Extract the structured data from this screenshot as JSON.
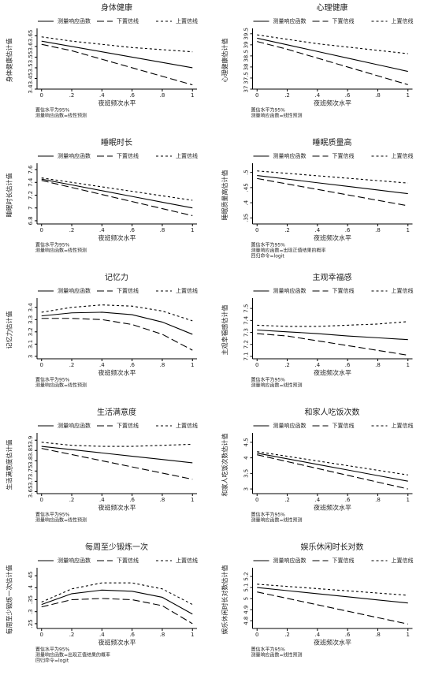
{
  "chart_data": [
    {
      "type": "line",
      "title": "身体健康",
      "y_label": "身体健康估计值",
      "x_label": "夜班频次水平",
      "notes": [
        "置信水平为95%",
        "测量响应函数=线性预测"
      ],
      "x": [
        0,
        0.2,
        0.4,
        0.6,
        0.8,
        1
      ],
      "xlim": [
        -0.03,
        1.03
      ],
      "xticks": [
        0,
        {
          "value": 0.2,
          "label": ".2"
        },
        {
          "value": 0.4,
          "label": ".4"
        },
        {
          "value": 0.6,
          "label": ".6"
        },
        {
          "value": 0.8,
          "label": ".8"
        },
        1
      ],
      "ylim": [
        3.4,
        3.67
      ],
      "yticks": [
        3.4,
        3.45,
        3.5,
        3.55,
        3.6,
        3.65
      ],
      "series": [
        {
          "name": "测量响应函数",
          "color": "#000000",
          "style": "solid",
          "values": [
            3.625,
            3.6,
            3.575,
            3.55,
            3.525,
            3.5
          ]
        },
        {
          "name": "下置信线",
          "color": "#000000",
          "style": "dashed",
          "values": [
            3.61,
            3.58,
            3.54,
            3.5,
            3.46,
            3.42
          ]
        },
        {
          "name": "上置信线",
          "color": "#000000",
          "style": "dotted",
          "values": [
            3.645,
            3.625,
            3.61,
            3.595,
            3.585,
            3.575
          ]
        }
      ]
    },
    {
      "type": "line",
      "title": "心理健康",
      "y_label": "心理健康估计值",
      "x_label": "夜班频次水平",
      "notes": [
        "置信水平为95%",
        "测量响应函数=线性预测"
      ],
      "x": [
        0,
        0.2,
        0.4,
        0.6,
        0.8,
        1
      ],
      "xlim": [
        -0.03,
        1.03
      ],
      "xticks": [
        0,
        {
          "value": 0.2,
          "label": ".2"
        },
        {
          "value": 0.4,
          "label": ".4"
        },
        {
          "value": 0.6,
          "label": ".6"
        },
        {
          "value": 0.8,
          "label": ".8"
        },
        1
      ],
      "ylim": [
        37,
        39.6
      ],
      "yticks": [
        37,
        37.5,
        38,
        38.5,
        39,
        39.5
      ],
      "series": [
        {
          "name": "测量响应函数",
          "color": "#000000",
          "style": "solid",
          "values": [
            39.3,
            39.0,
            38.7,
            38.4,
            38.1,
            37.8
          ]
        },
        {
          "name": "下置信线",
          "color": "#000000",
          "style": "dashed",
          "values": [
            39.15,
            38.8,
            38.4,
            38.0,
            37.6,
            37.2
          ]
        },
        {
          "name": "上置信线",
          "color": "#000000",
          "style": "dotted",
          "values": [
            39.45,
            39.25,
            39.05,
            38.9,
            38.75,
            38.6
          ]
        }
      ]
    },
    {
      "type": "line",
      "title": "睡眠时长",
      "y_label": "睡眠时长估计值",
      "x_label": "夜班频次水平",
      "notes": [
        "置信水平为95%",
        "测量响应函数=线性预测"
      ],
      "x": [
        0,
        0.2,
        0.4,
        0.6,
        0.8,
        1
      ],
      "xlim": [
        -0.03,
        1.03
      ],
      "xticks": [
        0,
        {
          "value": 0.2,
          "label": ".2"
        },
        {
          "value": 0.4,
          "label": ".4"
        },
        {
          "value": 0.6,
          "label": ".6"
        },
        {
          "value": 0.8,
          "label": ".8"
        },
        1
      ],
      "ylim": [
        6.75,
        7.65
      ],
      "yticks": [
        6.8,
        7,
        7.2,
        7.4,
        7.6
      ],
      "series": [
        {
          "name": "测量响应函数",
          "color": "#000000",
          "style": "solid",
          "values": [
            7.45,
            7.36,
            7.27,
            7.18,
            7.09,
            7.0
          ]
        },
        {
          "name": "下置信线",
          "color": "#000000",
          "style": "dashed",
          "values": [
            7.43,
            7.32,
            7.21,
            7.1,
            6.99,
            6.88
          ]
        },
        {
          "name": "上置信线",
          "color": "#000000",
          "style": "dotted",
          "values": [
            7.47,
            7.4,
            7.33,
            7.26,
            7.19,
            7.12
          ]
        }
      ]
    },
    {
      "type": "line",
      "title": "睡眠质量高",
      "y_label": "睡眠质量高估计值",
      "x_label": "夜班频次水平",
      "notes": [
        "置信水平为95%",
        "测量响应函数=出现正值结果的概率",
        "回归命令=logit"
      ],
      "x": [
        0,
        0.2,
        0.4,
        0.6,
        0.8,
        1
      ],
      "xlim": [
        -0.03,
        1.03
      ],
      "xticks": [
        0,
        {
          "value": 0.2,
          "label": ".2"
        },
        {
          "value": 0.4,
          "label": ".4"
        },
        {
          "value": 0.6,
          "label": ".6"
        },
        {
          "value": 0.8,
          "label": ".8"
        },
        1
      ],
      "ylim": [
        0.33,
        0.52
      ],
      "yticks": [
        {
          "value": 0.35,
          "label": ".35"
        },
        {
          "value": 0.4,
          "label": ".4"
        },
        {
          "value": 0.45,
          "label": ".45"
        },
        {
          "value": 0.5,
          "label": ".5"
        }
      ],
      "series": [
        {
          "name": "测量响应函数",
          "color": "#000000",
          "style": "solid",
          "values": [
            0.49,
            0.478,
            0.466,
            0.454,
            0.442,
            0.43
          ]
        },
        {
          "name": "下置信线",
          "color": "#000000",
          "style": "dashed",
          "values": [
            0.48,
            0.462,
            0.444,
            0.426,
            0.408,
            0.39
          ]
        },
        {
          "name": "上置信线",
          "color": "#000000",
          "style": "dotted",
          "values": [
            0.505,
            0.497,
            0.489,
            0.481,
            0.473,
            0.465
          ]
        }
      ]
    },
    {
      "type": "line",
      "title": "记忆力",
      "y_label": "记忆力估计值",
      "x_label": "夜班频次水平",
      "notes": [
        "置信水平为95%",
        "测量响应函数=线性预测"
      ],
      "x": [
        0,
        0.2,
        0.4,
        0.6,
        0.8,
        1
      ],
      "xlim": [
        -0.03,
        1.03
      ],
      "xticks": [
        0,
        {
          "value": 0.2,
          "label": ".2"
        },
        {
          "value": 0.4,
          "label": ".4"
        },
        {
          "value": 0.6,
          "label": ".6"
        },
        {
          "value": 0.8,
          "label": ".8"
        },
        1
      ],
      "ylim": [
        2.98,
        3.45
      ],
      "yticks": [
        3,
        3.1,
        3.2,
        3.3,
        3.4
      ],
      "series": [
        {
          "name": "测量响应函数",
          "color": "#000000",
          "style": "solid",
          "values": [
            3.33,
            3.355,
            3.36,
            3.34,
            3.28,
            3.18
          ]
        },
        {
          "name": "下置信线",
          "color": "#000000",
          "style": "dashed",
          "values": [
            3.31,
            3.31,
            3.3,
            3.26,
            3.18,
            3.05
          ]
        },
        {
          "name": "上置信线",
          "color": "#000000",
          "style": "dotted",
          "values": [
            3.36,
            3.4,
            3.42,
            3.41,
            3.37,
            3.29
          ]
        }
      ]
    },
    {
      "type": "line",
      "title": "主观幸福感",
      "y_label": "主观幸福感估计值",
      "x_label": "夜班频次水平",
      "notes": [
        "置信水平为95%",
        "测量响应函数=线性预测"
      ],
      "x": [
        0,
        0.2,
        0.4,
        0.6,
        0.8,
        1
      ],
      "xlim": [
        -0.03,
        1.03
      ],
      "xticks": [
        0,
        {
          "value": 0.2,
          "label": ".2"
        },
        {
          "value": 0.4,
          "label": ".4"
        },
        {
          "value": 0.6,
          "label": ".6"
        },
        {
          "value": 0.8,
          "label": ".8"
        },
        1
      ],
      "ylim": [
        7.08,
        7.56
      ],
      "yticks": [
        7.1,
        7.2,
        7.3,
        7.4,
        7.5
      ],
      "series": [
        {
          "name": "测量响应函数",
          "color": "#000000",
          "style": "solid",
          "values": [
            7.32,
            7.305,
            7.29,
            7.27,
            7.255,
            7.24
          ]
        },
        {
          "name": "下置信线",
          "color": "#000000",
          "style": "dashed",
          "values": [
            7.29,
            7.27,
            7.23,
            7.19,
            7.15,
            7.11
          ]
        },
        {
          "name": "上置信线",
          "color": "#000000",
          "style": "dotted",
          "values": [
            7.36,
            7.35,
            7.35,
            7.36,
            7.37,
            7.39
          ]
        }
      ]
    },
    {
      "type": "line",
      "title": "生活满意度",
      "y_label": "生活满意度估计值",
      "x_label": "夜班频次水平",
      "notes": [
        "置信水平为95%",
        "测量响应函数=线性预测"
      ],
      "x": [
        0,
        0.2,
        0.4,
        0.6,
        0.8,
        1
      ],
      "xlim": [
        -0.03,
        1.03
      ],
      "xticks": [
        0,
        {
          "value": 0.2,
          "label": ".2"
        },
        {
          "value": 0.4,
          "label": ".4"
        },
        {
          "value": 0.6,
          "label": ".6"
        },
        {
          "value": 0.8,
          "label": ".8"
        },
        1
      ],
      "ylim": [
        3.64,
        3.92
      ],
      "yticks": [
        3.65,
        3.7,
        3.75,
        3.8,
        3.85,
        3.9
      ],
      "series": [
        {
          "name": "测量响应函数",
          "color": "#000000",
          "style": "solid",
          "values": [
            3.87,
            3.854,
            3.838,
            3.822,
            3.806,
            3.79
          ]
        },
        {
          "name": "下置信线",
          "color": "#000000",
          "style": "dashed",
          "values": [
            3.86,
            3.83,
            3.8,
            3.77,
            3.74,
            3.71
          ]
        },
        {
          "name": "上置信线",
          "color": "#000000",
          "style": "dotted",
          "values": [
            3.89,
            3.875,
            3.87,
            3.87,
            3.875,
            3.88
          ]
        }
      ]
    },
    {
      "type": "line",
      "title": "和家人吃饭次数",
      "y_label": "和家人吃饭次数估计值",
      "x_label": "夜班频次水平",
      "notes": [
        "置信水平为95%",
        "测量响应函数=线性预测"
      ],
      "x": [
        0,
        0.2,
        0.4,
        0.6,
        0.8,
        1
      ],
      "xlim": [
        -0.03,
        1.03
      ],
      "xticks": [
        0,
        {
          "value": 0.2,
          "label": ".2"
        },
        {
          "value": 0.4,
          "label": ".4"
        },
        {
          "value": 0.6,
          "label": ".6"
        },
        {
          "value": 0.8,
          "label": ".8"
        },
        1
      ],
      "ylim": [
        2.85,
        4.7
      ],
      "yticks": [
        3,
        3.5,
        4,
        4.5
      ],
      "series": [
        {
          "name": "测量响应函数",
          "color": "#000000",
          "style": "solid",
          "values": [
            4.15,
            3.97,
            3.79,
            3.61,
            3.43,
            3.25
          ]
        },
        {
          "name": "下置信线",
          "color": "#000000",
          "style": "dashed",
          "values": [
            4.1,
            3.88,
            3.66,
            3.44,
            3.22,
            3.0
          ]
        },
        {
          "name": "上置信线",
          "color": "#000000",
          "style": "dotted",
          "values": [
            4.2,
            4.05,
            3.9,
            3.75,
            3.6,
            3.45
          ]
        }
      ]
    },
    {
      "type": "line",
      "title": "每周至少锻炼一次",
      "y_label": "每周至少锻炼一次估计值",
      "x_label": "夜班频次水平",
      "notes": [
        "置信水平为95%",
        "测量响应函数=出现正值结果的概率",
        "回归命令=logit"
      ],
      "x": [
        0,
        0.2,
        0.4,
        0.6,
        0.8,
        1
      ],
      "xlim": [
        -0.03,
        1.03
      ],
      "xticks": [
        0,
        {
          "value": 0.2,
          "label": ".2"
        },
        {
          "value": 0.4,
          "label": ".4"
        },
        {
          "value": 0.6,
          "label": ".6"
        },
        {
          "value": 0.8,
          "label": ".8"
        },
        1
      ],
      "ylim": [
        0.23,
        0.47
      ],
      "yticks": [
        {
          "value": 0.25,
          "label": ".25"
        },
        {
          "value": 0.3,
          "label": ".3"
        },
        {
          "value": 0.35,
          "label": ".35"
        },
        {
          "value": 0.4,
          "label": ".4"
        },
        {
          "value": 0.45,
          "label": ".45"
        }
      ],
      "series": [
        {
          "name": "测量响应函数",
          "color": "#000000",
          "style": "solid",
          "values": [
            0.33,
            0.375,
            0.39,
            0.385,
            0.36,
            0.29
          ]
        },
        {
          "name": "下置信线",
          "color": "#000000",
          "style": "dashed",
          "values": [
            0.32,
            0.35,
            0.355,
            0.35,
            0.325,
            0.25
          ]
        },
        {
          "name": "上置信线",
          "color": "#000000",
          "style": "dotted",
          "values": [
            0.34,
            0.395,
            0.42,
            0.42,
            0.395,
            0.33
          ]
        }
      ]
    },
    {
      "type": "line",
      "title": "娱乐休闲时长对数",
      "y_label": "娱乐休闲时长对数估计值",
      "x_label": "夜班频次水平",
      "notes": [
        "置信水平为95%",
        "测量响应函数=线性预测"
      ],
      "x": [
        0,
        0.2,
        0.4,
        0.6,
        0.8,
        1
      ],
      "xlim": [
        -0.03,
        1.03
      ],
      "xticks": [
        0,
        {
          "value": 0.2,
          "label": ".2"
        },
        {
          "value": 0.4,
          "label": ".4"
        },
        {
          "value": 0.6,
          "label": ".6"
        },
        {
          "value": 0.8,
          "label": ".8"
        },
        1
      ],
      "ylim": [
        4.73,
        5.25
      ],
      "yticks": [
        4.8,
        4.9,
        5,
        5.1,
        5.2
      ],
      "series": [
        {
          "name": "测量响应函数",
          "color": "#000000",
          "style": "solid",
          "values": [
            5.1,
            5.072,
            5.044,
            5.016,
            4.988,
            4.96
          ]
        },
        {
          "name": "下置信线",
          "color": "#000000",
          "style": "dashed",
          "values": [
            5.06,
            5.002,
            4.944,
            4.886,
            4.828,
            4.77
          ]
        },
        {
          "name": "上置信线",
          "color": "#000000",
          "style": "dotted",
          "values": [
            5.13,
            5.11,
            5.09,
            5.07,
            5.05,
            5.03
          ]
        }
      ]
    }
  ]
}
